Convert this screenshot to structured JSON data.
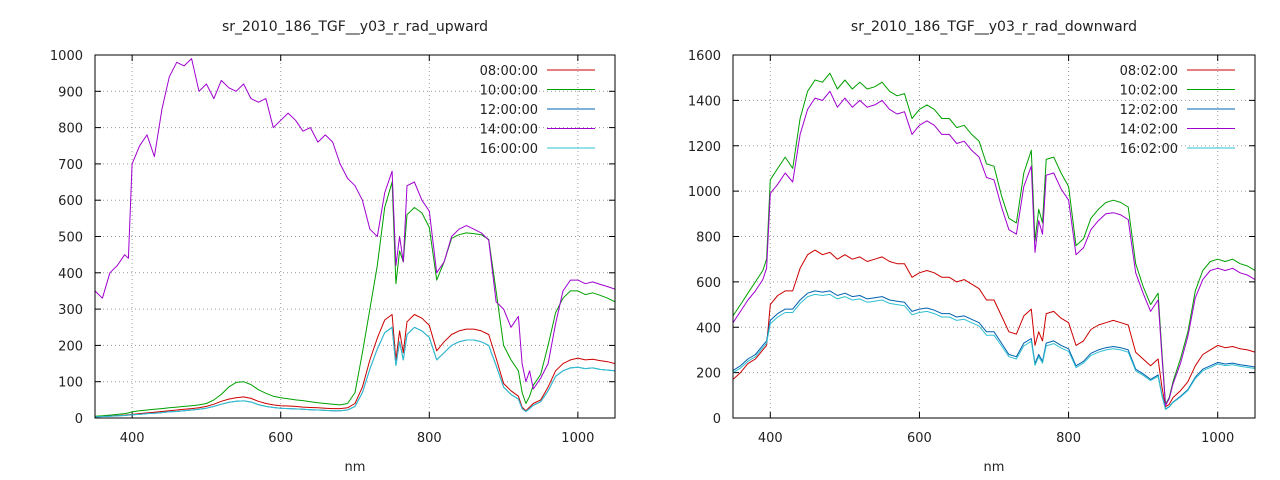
{
  "chart_data": [
    {
      "type": "line",
      "title": "sr_2010_186_TGF__y03_r_rad_upward",
      "xlabel": "nm",
      "ylabel": "",
      "xlim": [
        350,
        1050
      ],
      "ylim": [
        0,
        1000
      ],
      "xticks": [
        400,
        600,
        800,
        1000
      ],
      "yticks": [
        0,
        100,
        200,
        300,
        400,
        500,
        600,
        700,
        800,
        900,
        1000
      ],
      "grid": true,
      "legend": "top-right",
      "x": [
        350,
        360,
        370,
        380,
        390,
        395,
        400,
        410,
        420,
        430,
        440,
        450,
        460,
        470,
        480,
        490,
        500,
        510,
        520,
        530,
        540,
        550,
        560,
        570,
        580,
        590,
        600,
        610,
        620,
        630,
        640,
        650,
        660,
        670,
        680,
        690,
        700,
        710,
        720,
        730,
        740,
        750,
        755,
        760,
        765,
        770,
        780,
        790,
        800,
        810,
        820,
        830,
        840,
        850,
        860,
        870,
        880,
        890,
        900,
        910,
        920,
        925,
        930,
        935,
        940,
        950,
        960,
        970,
        980,
        990,
        1000,
        1010,
        1020,
        1030,
        1040,
        1050
      ],
      "series": [
        {
          "name": "08:00:00",
          "color": "#cc0000",
          "values": [
            4,
            5,
            6,
            7,
            8,
            9,
            10,
            12,
            14,
            16,
            18,
            20,
            22,
            24,
            26,
            28,
            32,
            38,
            46,
            52,
            56,
            58,
            54,
            46,
            40,
            36,
            34,
            33,
            32,
            30,
            29,
            28,
            27,
            26,
            26,
            28,
            40,
            85,
            160,
            220,
            270,
            285,
            160,
            240,
            180,
            265,
            285,
            275,
            255,
            185,
            210,
            230,
            240,
            245,
            245,
            240,
            230,
            165,
            95,
            75,
            60,
            30,
            20,
            30,
            40,
            50,
            85,
            130,
            150,
            160,
            165,
            160,
            162,
            158,
            155,
            150
          ]
        },
        {
          "name": "10:00:00",
          "color": "#00a000",
          "values": [
            5,
            6,
            8,
            10,
            12,
            14,
            17,
            20,
            22,
            24,
            26,
            28,
            30,
            32,
            34,
            36,
            40,
            50,
            65,
            85,
            98,
            100,
            92,
            78,
            68,
            60,
            56,
            53,
            50,
            48,
            45,
            42,
            40,
            38,
            36,
            40,
            70,
            180,
            300,
            420,
            580,
            650,
            370,
            460,
            430,
            560,
            580,
            565,
            525,
            380,
            430,
            495,
            505,
            510,
            508,
            505,
            492,
            350,
            200,
            160,
            130,
            70,
            40,
            60,
            90,
            120,
            200,
            290,
            330,
            350,
            350,
            340,
            345,
            338,
            330,
            320
          ]
        },
        {
          "name": "12:00:00",
          "color": "#0060b0",
          "values": [
            3,
            4,
            5,
            6,
            7,
            8,
            9,
            10,
            12,
            13,
            15,
            17,
            18,
            20,
            22,
            24,
            27,
            32,
            38,
            43,
            46,
            47,
            44,
            37,
            32,
            29,
            27,
            26,
            25,
            24,
            23,
            22,
            21,
            20,
            20,
            22,
            32,
            70,
            135,
            190,
            235,
            250,
            145,
            210,
            160,
            230,
            250,
            240,
            222,
            160,
            180,
            200,
            210,
            215,
            215,
            210,
            200,
            145,
            85,
            65,
            52,
            26,
            18,
            26,
            35,
            45,
            75,
            115,
            130,
            138,
            140,
            136,
            138,
            134,
            132,
            130
          ]
        },
        {
          "name": "14:00:00",
          "color": "#a000d0",
          "values": [
            350,
            330,
            400,
            420,
            450,
            440,
            700,
            750,
            780,
            720,
            850,
            940,
            980,
            970,
            990,
            900,
            920,
            880,
            930,
            910,
            900,
            920,
            880,
            870,
            880,
            800,
            820,
            840,
            820,
            790,
            800,
            760,
            780,
            760,
            700,
            660,
            640,
            600,
            520,
            500,
            620,
            680,
            420,
            500,
            430,
            640,
            650,
            600,
            570,
            400,
            430,
            500,
            520,
            530,
            520,
            510,
            490,
            320,
            300,
            250,
            280,
            150,
            100,
            130,
            80,
            110,
            150,
            260,
            350,
            380,
            380,
            370,
            375,
            368,
            362,
            355
          ]
        },
        {
          "name": "16:00:00",
          "color": "#30c0d0",
          "values": [
            3,
            4,
            5,
            6,
            7,
            8,
            9,
            10,
            12,
            13,
            15,
            17,
            18,
            20,
            22,
            24,
            27,
            32,
            38,
            43,
            46,
            47,
            44,
            37,
            32,
            29,
            27,
            26,
            25,
            24,
            23,
            22,
            21,
            20,
            20,
            22,
            32,
            70,
            135,
            190,
            235,
            250,
            145,
            210,
            160,
            230,
            250,
            240,
            222,
            160,
            180,
            200,
            210,
            215,
            215,
            210,
            200,
            145,
            85,
            65,
            52,
            26,
            18,
            26,
            35,
            45,
            75,
            115,
            130,
            138,
            140,
            136,
            138,
            134,
            132,
            130
          ]
        }
      ]
    },
    {
      "type": "line",
      "title": "sr_2010_186_TGF__y03_r_rad_downward",
      "xlabel": "nm",
      "ylabel": "",
      "xlim": [
        350,
        1050
      ],
      "ylim": [
        0,
        1600
      ],
      "xticks": [
        400,
        600,
        800,
        1000
      ],
      "yticks": [
        0,
        200,
        400,
        600,
        800,
        1000,
        1200,
        1400,
        1600
      ],
      "grid": true,
      "legend": "top-right",
      "x": [
        350,
        360,
        370,
        380,
        390,
        395,
        400,
        410,
        420,
        430,
        440,
        450,
        460,
        470,
        480,
        490,
        500,
        510,
        520,
        530,
        540,
        550,
        560,
        570,
        580,
        590,
        600,
        610,
        620,
        630,
        640,
        650,
        660,
        670,
        680,
        690,
        700,
        710,
        720,
        730,
        740,
        750,
        755,
        760,
        765,
        770,
        780,
        790,
        800,
        810,
        820,
        830,
        840,
        850,
        860,
        870,
        880,
        890,
        900,
        910,
        920,
        925,
        930,
        935,
        940,
        950,
        960,
        970,
        980,
        990,
        1000,
        1010,
        1020,
        1030,
        1040,
        1050
      ],
      "series": [
        {
          "name": "08:02:00",
          "color": "#cc0000",
          "values": [
            170,
            200,
            240,
            260,
            300,
            320,
            500,
            540,
            560,
            560,
            660,
            720,
            740,
            720,
            730,
            700,
            720,
            700,
            710,
            690,
            700,
            710,
            690,
            680,
            680,
            620,
            640,
            650,
            640,
            620,
            620,
            600,
            610,
            590,
            570,
            520,
            520,
            450,
            380,
            370,
            450,
            480,
            320,
            380,
            340,
            460,
            470,
            440,
            420,
            320,
            340,
            390,
            410,
            420,
            430,
            420,
            410,
            290,
            260,
            230,
            260,
            140,
            50,
            60,
            90,
            120,
            160,
            230,
            280,
            300,
            320,
            310,
            315,
            305,
            300,
            290
          ]
        },
        {
          "name": "10:02:00",
          "color": "#00a000",
          "values": [
            450,
            500,
            550,
            600,
            650,
            700,
            1050,
            1100,
            1150,
            1100,
            1320,
            1440,
            1490,
            1480,
            1520,
            1450,
            1490,
            1450,
            1480,
            1450,
            1460,
            1480,
            1440,
            1420,
            1430,
            1320,
            1360,
            1380,
            1360,
            1320,
            1320,
            1280,
            1290,
            1250,
            1220,
            1120,
            1110,
            980,
            880,
            860,
            1080,
            1180,
            780,
            920,
            860,
            1140,
            1150,
            1080,
            1020,
            760,
            790,
            880,
            920,
            950,
            960,
            950,
            930,
            680,
            580,
            500,
            550,
            300,
            60,
            90,
            160,
            260,
            380,
            560,
            650,
            690,
            700,
            690,
            700,
            680,
            670,
            650
          ]
        },
        {
          "name": "12:02:00",
          "color": "#0060b0",
          "values": [
            210,
            230,
            260,
            280,
            320,
            340,
            430,
            460,
            480,
            480,
            520,
            550,
            560,
            555,
            560,
            540,
            550,
            535,
            540,
            525,
            530,
            535,
            520,
            515,
            510,
            470,
            480,
            485,
            475,
            460,
            460,
            445,
            450,
            435,
            420,
            380,
            380,
            330,
            280,
            270,
            330,
            350,
            240,
            280,
            250,
            330,
            340,
            320,
            305,
            230,
            250,
            285,
            300,
            310,
            315,
            310,
            300,
            215,
            195,
            170,
            190,
            105,
            40,
            50,
            70,
            95,
            125,
            180,
            215,
            230,
            245,
            238,
            242,
            235,
            230,
            225
          ]
        },
        {
          "name": "14:02:00",
          "color": "#a000d0",
          "values": [
            420,
            470,
            520,
            560,
            610,
            660,
            990,
            1030,
            1080,
            1040,
            1250,
            1360,
            1410,
            1400,
            1440,
            1370,
            1410,
            1370,
            1400,
            1370,
            1380,
            1400,
            1360,
            1340,
            1350,
            1250,
            1290,
            1310,
            1290,
            1250,
            1250,
            1210,
            1220,
            1180,
            1150,
            1060,
            1050,
            930,
            830,
            810,
            1020,
            1110,
            730,
            870,
            810,
            1070,
            1080,
            1010,
            960,
            720,
            750,
            830,
            870,
            900,
            905,
            895,
            875,
            640,
            550,
            470,
            520,
            280,
            55,
            85,
            150,
            240,
            360,
            530,
            610,
            650,
            660,
            650,
            660,
            640,
            630,
            610
          ]
        },
        {
          "name": "16:02:00",
          "color": "#30c0d0",
          "values": [
            200,
            220,
            250,
            270,
            310,
            330,
            415,
            445,
            465,
            465,
            505,
            535,
            545,
            540,
            545,
            525,
            535,
            520,
            525,
            510,
            515,
            520,
            505,
            500,
            495,
            455,
            465,
            470,
            460,
            445,
            445,
            430,
            435,
            420,
            405,
            365,
            365,
            318,
            270,
            260,
            318,
            338,
            232,
            270,
            242,
            318,
            328,
            308,
            294,
            222,
            242,
            276,
            290,
            300,
            305,
            300,
            290,
            208,
            188,
            165,
            184,
            101,
            38,
            48,
            68,
            92,
            121,
            174,
            208,
            223,
            238,
            231,
            235,
            228,
            223,
            218
          ]
        }
      ]
    }
  ]
}
